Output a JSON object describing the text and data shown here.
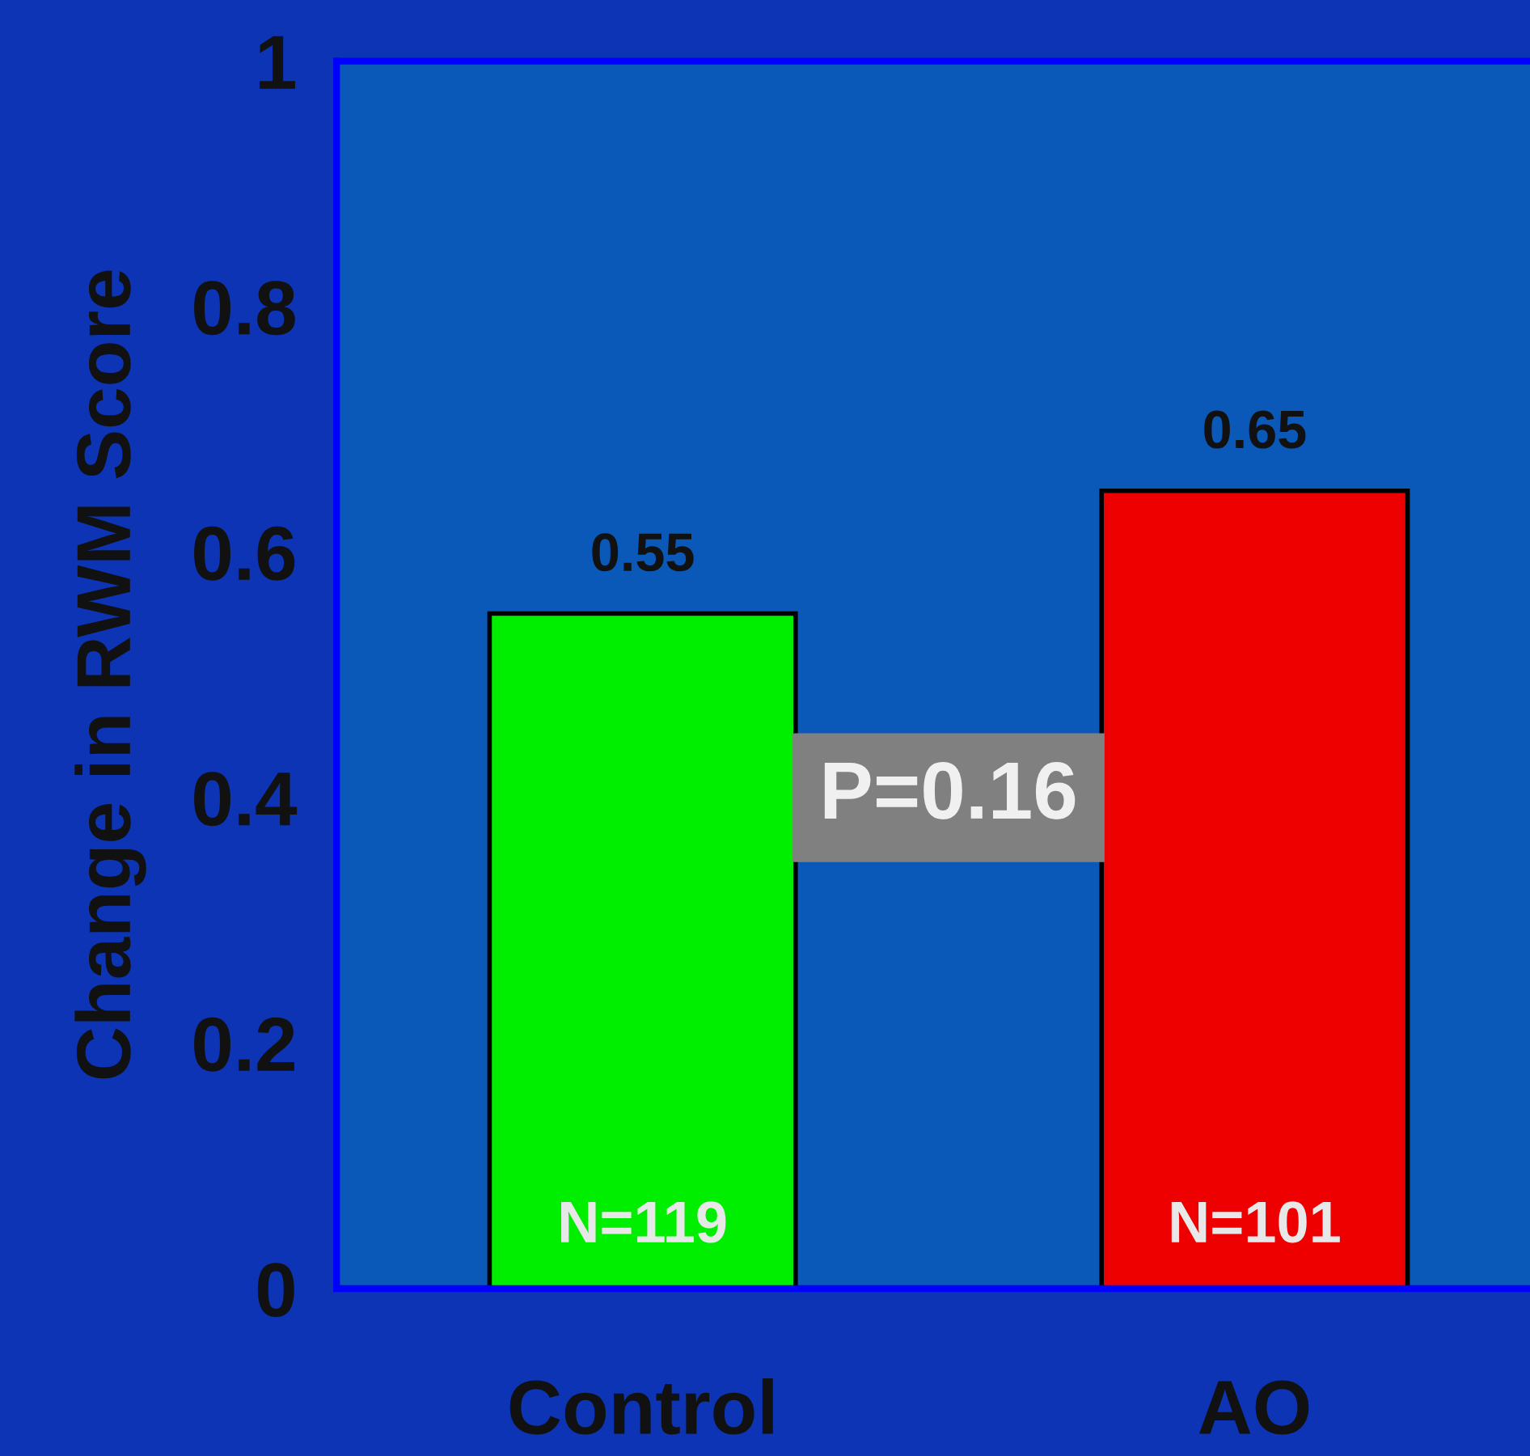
{
  "chart_data": {
    "type": "bar",
    "ylabel": "Change in RWM Score",
    "categories": [
      "Control",
      "AO"
    ],
    "values": [
      0.55,
      0.65
    ],
    "colors": [
      "#00ee00",
      "#ee0000"
    ],
    "ylim": [
      0,
      1
    ],
    "yticks": [
      0,
      0.2,
      0.4,
      0.6,
      0.8,
      1
    ],
    "data_labels": true,
    "grid": false,
    "legend": false,
    "annotations": [
      "N=119",
      "N=101",
      "P=0.16"
    ]
  }
}
